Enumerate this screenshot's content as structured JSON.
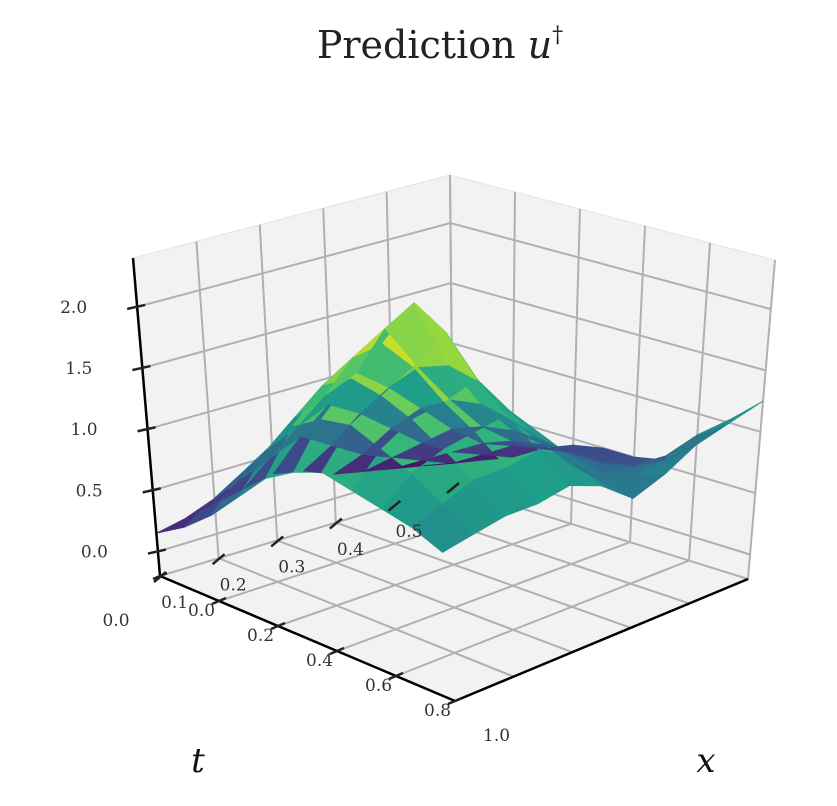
{
  "chart_data": {
    "type": "surface",
    "title_prefix": "Prediction ",
    "title_symbol": "u",
    "title_superscript": "†",
    "xlabel": "x",
    "tlabel": "t",
    "zlabel": "",
    "x_ticks": [
      "0.0",
      "0.2",
      "0.4",
      "0.6",
      "0.8",
      "1.0"
    ],
    "t_ticks": [
      "0.0",
      "0.1",
      "0.2",
      "0.3",
      "0.4",
      "0.5"
    ],
    "z_ticks": [
      "0.0",
      "0.5",
      "1.0",
      "1.5",
      "2.0"
    ],
    "xlim": [
      0,
      1
    ],
    "tlim": [
      0,
      0.5
    ],
    "zlim": [
      -0.2,
      2.4
    ],
    "grid": true,
    "colormap": "viridis",
    "colormap_stops": [
      "#440154",
      "#482878",
      "#3e4989",
      "#31688e",
      "#26828e",
      "#1f9e89",
      "#35b779",
      "#6ece58",
      "#b5de2b",
      "#fde725"
    ],
    "pane_color": "#f2f2f2",
    "grid_color": "#b0b0b4",
    "x": [
      0.0,
      0.1,
      0.2,
      0.3,
      0.4,
      0.5,
      0.6,
      0.7,
      0.8,
      0.9,
      1.0
    ],
    "t": [
      0.0,
      0.05,
      0.1,
      0.15,
      0.2,
      0.25,
      0.3,
      0.35,
      0.4,
      0.45,
      0.5
    ],
    "u": [
      [
        0.15,
        0.3,
        0.5,
        0.75,
        1.0,
        1.15,
        1.25,
        1.2,
        1.15,
        1.1,
        1.0
      ],
      [
        0.2,
        0.45,
        0.75,
        1.05,
        1.35,
        1.5,
        1.55,
        1.45,
        1.35,
        1.2,
        1.05
      ],
      [
        0.25,
        0.55,
        0.9,
        1.25,
        1.6,
        1.75,
        1.7,
        1.6,
        1.45,
        1.3,
        1.1
      ],
      [
        0.3,
        0.65,
        1.0,
        1.35,
        1.75,
        1.95,
        1.85,
        1.65,
        1.5,
        1.3,
        1.1
      ],
      [
        0.35,
        0.75,
        1.1,
        1.45,
        1.9,
        2.2,
        2.05,
        1.75,
        1.55,
        1.35,
        1.15
      ],
      [
        0.3,
        0.6,
        0.95,
        1.25,
        1.5,
        1.6,
        1.55,
        1.4,
        1.3,
        1.2,
        1.05
      ],
      [
        0.2,
        0.45,
        0.75,
        1.0,
        1.15,
        1.2,
        1.15,
        1.05,
        0.95,
        0.9,
        0.85
      ],
      [
        0.15,
        0.35,
        0.55,
        0.75,
        0.85,
        0.9,
        0.9,
        0.85,
        0.8,
        0.85,
        0.95
      ],
      [
        0.1,
        0.25,
        0.4,
        0.55,
        0.65,
        0.7,
        0.7,
        0.7,
        0.75,
        0.9,
        1.1
      ],
      [
        0.05,
        0.15,
        0.3,
        0.45,
        0.5,
        0.55,
        0.55,
        0.6,
        0.75,
        1.0,
        1.2
      ],
      [
        0.0,
        0.1,
        0.2,
        0.35,
        0.45,
        0.5,
        0.5,
        0.55,
        0.75,
        1.0,
        1.25
      ]
    ]
  }
}
